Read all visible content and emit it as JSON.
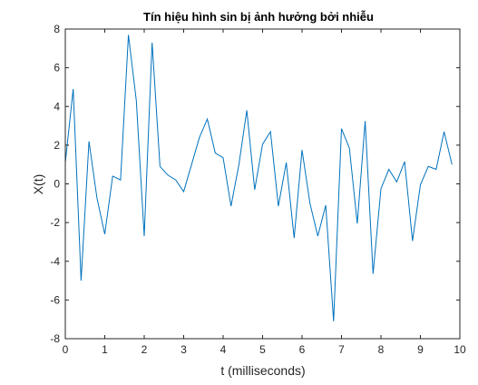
{
  "chart_data": {
    "type": "line",
    "title": "Tín hiệu hình sin bị ảnh hưởng bởi nhiễu",
    "xlabel": "t (milliseconds)",
    "ylabel": "X(t)",
    "xlim": [
      0,
      10
    ],
    "ylim": [
      -8,
      8
    ],
    "xticks": [
      "0",
      "1",
      "2",
      "3",
      "4",
      "5",
      "6",
      "7",
      "8",
      "9",
      "10"
    ],
    "yticks": [
      "-8",
      "-6",
      "-4",
      "-2",
      "0",
      "2",
      "4",
      "6",
      "8"
    ],
    "grid": false,
    "legend": "none",
    "series": [
      {
        "color": "#0072BD",
        "x": [
          0,
          0.2,
          0.4,
          0.6,
          0.8,
          1.0,
          1.2,
          1.4,
          1.6,
          1.8,
          2.0,
          2.2,
          2.4,
          2.6,
          2.8,
          3.0,
          3.2,
          3.4,
          3.6,
          3.8,
          4.0,
          4.2,
          4.4,
          4.6,
          4.8,
          5.0,
          5.2,
          5.4,
          5.6,
          5.8,
          6.0,
          6.2,
          6.4,
          6.6,
          6.8,
          7.0,
          7.2,
          7.4,
          7.6,
          7.8,
          8.0,
          8.2,
          8.4,
          8.6,
          8.8,
          9.0,
          9.2,
          9.4,
          9.6,
          9.8
        ],
        "y": [
          1.1,
          4.9,
          -5.0,
          2.2,
          -0.7,
          -2.6,
          0.4,
          0.2,
          7.7,
          4.3,
          -2.7,
          7.3,
          0.9,
          0.45,
          0.2,
          -0.4,
          1.0,
          2.4,
          3.35,
          1.6,
          1.35,
          -1.15,
          1.0,
          3.8,
          -0.3,
          2.05,
          2.7,
          -1.15,
          1.1,
          -2.8,
          1.75,
          -1.0,
          -2.7,
          -1.1,
          -7.1,
          2.85,
          1.85,
          -2.05,
          3.25,
          -4.65,
          -0.25,
          0.75,
          0.1,
          1.15,
          -2.95,
          -0.05,
          0.9,
          0.75,
          2.7,
          1.0
        ]
      }
    ]
  }
}
